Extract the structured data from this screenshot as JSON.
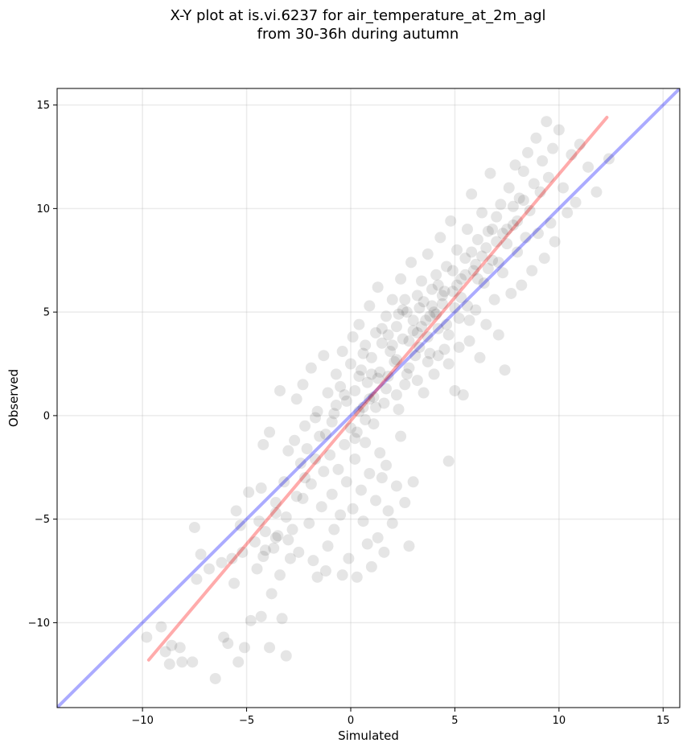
{
  "chart_data": {
    "type": "scatter",
    "title": "X-Y plot at is.vi.6237 for air_temperature_at_2m_agl",
    "subtitle": "from 30-36h during autumn",
    "xlabel": "Simulated",
    "ylabel": "Observed",
    "xlim": [
      -14.1,
      15.8
    ],
    "ylim": [
      -14.1,
      15.8
    ],
    "x_ticks": [
      -10,
      -5,
      0,
      5,
      10,
      15
    ],
    "y_ticks": [
      -10,
      -5,
      0,
      5,
      10,
      15
    ],
    "x_tick_labels": [
      "−10",
      "−5",
      "0",
      "5",
      "10",
      "15"
    ],
    "y_tick_labels": [
      "−10",
      "−5",
      "0",
      "5",
      "10",
      "15"
    ],
    "grid": true,
    "point_color": "#000000",
    "point_opacity": 0.1,
    "reference_line": {
      "color": "#0000ff",
      "opacity": 0.33,
      "x": [
        -14.1,
        15.8
      ],
      "y": [
        -14.1,
        15.8
      ]
    },
    "regression_line": {
      "color": "#ff0000",
      "opacity": 0.33,
      "x": [
        -9.7,
        12.3
      ],
      "y": [
        -11.8,
        14.4
      ]
    },
    "series": [
      {
        "points": [
          [
            -9.8,
            -10.7
          ],
          [
            -9.1,
            -10.2
          ],
          [
            -8.9,
            -11.4
          ],
          [
            -8.6,
            -11.1
          ],
          [
            -8.7,
            -12.0
          ],
          [
            -8.2,
            -11.2
          ],
          [
            -8.1,
            -11.9
          ],
          [
            -7.6,
            -11.9
          ],
          [
            -7.4,
            -7.9
          ],
          [
            -7.2,
            -6.7
          ],
          [
            -7.5,
            -5.4
          ],
          [
            -6.8,
            -7.4
          ],
          [
            -6.5,
            -12.7
          ],
          [
            -6.2,
            -7.1
          ],
          [
            -6.1,
            -10.7
          ],
          [
            -5.9,
            -11.0
          ],
          [
            -5.7,
            -6.9
          ],
          [
            -5.6,
            -8.1
          ],
          [
            -5.5,
            -4.6
          ],
          [
            -5.3,
            -5.3
          ],
          [
            -5.4,
            -11.9
          ],
          [
            -5.1,
            -11.2
          ],
          [
            -5.2,
            -6.6
          ],
          [
            -4.9,
            -3.7
          ],
          [
            -4.8,
            -9.9
          ],
          [
            -4.6,
            -6.1
          ],
          [
            -4.5,
            -7.4
          ],
          [
            -4.3,
            -9.7
          ],
          [
            -4.4,
            -5.1
          ],
          [
            -4.1,
            -5.6
          ],
          [
            -4.2,
            -6.8
          ],
          [
            -3.9,
            -11.2
          ],
          [
            -3.8,
            -8.6
          ],
          [
            -3.7,
            -6.4
          ],
          [
            -3.6,
            -4.7
          ],
          [
            -3.5,
            -5.8
          ],
          [
            -3.4,
            -7.7
          ],
          [
            -3.3,
            -9.8
          ],
          [
            -3.1,
            -11.6
          ],
          [
            -3.2,
            -3.2
          ],
          [
            -3.0,
            -6.0
          ],
          [
            -2.9,
            -6.9
          ],
          [
            -2.8,
            -5.5
          ],
          [
            -4.2,
            -1.4
          ],
          [
            -4.3,
            -3.5
          ],
          [
            -3.9,
            -0.8
          ],
          [
            -3.6,
            -4.2
          ],
          [
            -2.7,
            -1.2
          ],
          [
            -2.5,
            -6.6
          ],
          [
            -2.4,
            -2.3
          ],
          [
            -2.3,
            -4.0
          ],
          [
            -2.2,
            -0.5
          ],
          [
            -2.1,
            -1.6
          ],
          [
            -2.0,
            -5.2
          ],
          [
            -1.9,
            -3.3
          ],
          [
            -1.8,
            -7.0
          ],
          [
            -1.7,
            -0.1
          ],
          [
            -1.6,
            -7.8
          ],
          [
            -1.5,
            -1.0
          ],
          [
            -1.4,
            -4.4
          ],
          [
            -1.3,
            -2.7
          ],
          [
            -1.2,
            -7.5
          ],
          [
            -1.1,
            -6.3
          ],
          [
            -1.0,
            -1.9
          ],
          [
            -0.9,
            -3.8
          ],
          [
            -0.8,
            -5.5
          ],
          [
            -0.7,
            0.5
          ],
          [
            -0.6,
            -2.6
          ],
          [
            -0.5,
            -4.8
          ],
          [
            -0.4,
            -7.7
          ],
          [
            -0.3,
            -1.4
          ],
          [
            -0.2,
            -3.2
          ],
          [
            -0.1,
            -6.9
          ],
          [
            0.0,
            -0.6
          ],
          [
            0.1,
            -4.5
          ],
          [
            0.2,
            -2.1
          ],
          [
            0.3,
            -7.8
          ],
          [
            0.4,
            0.2
          ],
          [
            0.5,
            -3.6
          ],
          [
            0.6,
            -5.1
          ],
          [
            0.7,
            -1.3
          ],
          [
            0.8,
            -6.2
          ],
          [
            0.9,
            -2.8
          ],
          [
            1.0,
            -7.3
          ],
          [
            1.1,
            -0.4
          ],
          [
            1.2,
            -4.1
          ],
          [
            1.3,
            -5.9
          ],
          [
            1.4,
            -1.8
          ],
          [
            1.5,
            -3.0
          ],
          [
            1.6,
            -6.6
          ],
          [
            1.7,
            -2.4
          ],
          [
            1.8,
            -4.6
          ],
          [
            2.0,
            -5.2
          ],
          [
            2.2,
            -3.4
          ],
          [
            2.4,
            -1.0
          ],
          [
            2.6,
            -4.2
          ],
          [
            2.8,
            -6.3
          ],
          [
            3.0,
            -3.2
          ],
          [
            4.7,
            -2.2
          ],
          [
            -3.4,
            1.2
          ],
          [
            -3.0,
            -1.7
          ],
          [
            -2.6,
            0.8
          ],
          [
            -2.3,
            1.5
          ],
          [
            -1.9,
            2.3
          ],
          [
            -1.6,
            0.2
          ],
          [
            -1.3,
            2.9
          ],
          [
            -1.1,
            1.1
          ],
          [
            -0.9,
            -0.3
          ],
          [
            -0.7,
            2.0
          ],
          [
            -0.5,
            1.4
          ],
          [
            -0.4,
            3.1
          ],
          [
            -0.2,
            0.7
          ],
          [
            0.0,
            2.5
          ],
          [
            0.1,
            3.8
          ],
          [
            0.2,
            1.2
          ],
          [
            0.3,
            -0.8
          ],
          [
            0.4,
            4.4
          ],
          [
            0.5,
            2.2
          ],
          [
            0.6,
            0.4
          ],
          [
            0.7,
            3.4
          ],
          [
            0.8,
            1.6
          ],
          [
            0.9,
            5.3
          ],
          [
            1.0,
            2.8
          ],
          [
            1.1,
            0.9
          ],
          [
            1.2,
            4.0
          ],
          [
            1.3,
            6.2
          ],
          [
            1.4,
            2.1
          ],
          [
            1.5,
            3.5
          ],
          [
            1.6,
            0.6
          ],
          [
            1.7,
            4.8
          ],
          [
            1.8,
            1.9
          ],
          [
            1.9,
            3.1
          ],
          [
            2.0,
            5.6
          ],
          [
            2.1,
            2.6
          ],
          [
            2.2,
            4.3
          ],
          [
            2.3,
            0.3
          ],
          [
            2.4,
            6.6
          ],
          [
            2.5,
            3.7
          ],
          [
            2.6,
            1.5
          ],
          [
            2.7,
            5.0
          ],
          [
            2.8,
            2.3
          ],
          [
            2.9,
            7.4
          ],
          [
            3.0,
            4.1
          ],
          [
            3.1,
            2.9
          ],
          [
            3.2,
            5.8
          ],
          [
            3.3,
            3.3
          ],
          [
            3.4,
            6.5
          ],
          [
            3.5,
            1.1
          ],
          [
            3.6,
            4.6
          ],
          [
            3.7,
            7.8
          ],
          [
            3.8,
            3.0
          ],
          [
            3.9,
            5.3
          ],
          [
            4.0,
            2.0
          ],
          [
            4.1,
            6.8
          ],
          [
            4.2,
            4.2
          ],
          [
            4.3,
            8.6
          ],
          [
            4.4,
            5.4
          ],
          [
            4.5,
            3.2
          ],
          [
            4.6,
            7.2
          ],
          [
            4.7,
            2.5
          ],
          [
            4.8,
            9.4
          ],
          [
            4.9,
            6.0
          ],
          [
            5.0,
            1.2
          ],
          [
            5.1,
            8.0
          ],
          [
            5.2,
            4.7
          ],
          [
            5.3,
            6.6
          ],
          [
            5.4,
            1.0
          ],
          [
            5.5,
            7.6
          ],
          [
            5.6,
            9.0
          ],
          [
            5.7,
            3.6
          ],
          [
            5.8,
            10.7
          ],
          [
            5.9,
            7.0
          ],
          [
            6.0,
            5.1
          ],
          [
            6.1,
            8.5
          ],
          [
            6.2,
            2.8
          ],
          [
            6.3,
            9.8
          ],
          [
            6.4,
            6.4
          ],
          [
            6.5,
            4.4
          ],
          [
            6.6,
            8.9
          ],
          [
            6.7,
            11.7
          ],
          [
            6.8,
            7.5
          ],
          [
            6.9,
            5.6
          ],
          [
            7.0,
            9.6
          ],
          [
            7.1,
            3.9
          ],
          [
            7.2,
            10.2
          ],
          [
            7.3,
            6.9
          ],
          [
            7.4,
            2.2
          ],
          [
            7.5,
            8.3
          ],
          [
            7.6,
            11.0
          ],
          [
            7.7,
            5.9
          ],
          [
            7.8,
            9.2
          ],
          [
            7.9,
            12.1
          ],
          [
            8.0,
            7.9
          ],
          [
            8.1,
            10.5
          ],
          [
            8.2,
            6.3
          ],
          [
            8.3,
            11.8
          ],
          [
            8.4,
            8.6
          ],
          [
            8.5,
            12.7
          ],
          [
            8.6,
            9.9
          ],
          [
            8.7,
            7.0
          ],
          [
            8.8,
            11.2
          ],
          [
            8.9,
            13.4
          ],
          [
            9.0,
            8.8
          ],
          [
            9.1,
            10.8
          ],
          [
            9.2,
            12.3
          ],
          [
            9.3,
            7.6
          ],
          [
            9.4,
            14.2
          ],
          [
            9.5,
            11.5
          ],
          [
            9.6,
            9.3
          ],
          [
            9.7,
            12.9
          ],
          [
            9.8,
            8.4
          ],
          [
            10.0,
            13.8
          ],
          [
            10.2,
            11.0
          ],
          [
            10.4,
            9.8
          ],
          [
            10.6,
            12.6
          ],
          [
            10.8,
            10.3
          ],
          [
            11.0,
            13.1
          ],
          [
            11.4,
            12.0
          ],
          [
            11.8,
            10.8
          ],
          [
            12.4,
            12.4
          ],
          [
            0.6,
            3.0
          ],
          [
            1.0,
            2.0
          ],
          [
            1.5,
            4.2
          ],
          [
            2.0,
            3.4
          ],
          [
            2.5,
            5.1
          ],
          [
            3.0,
            4.6
          ],
          [
            3.5,
            5.5
          ],
          [
            4.0,
            5.0
          ],
          [
            4.5,
            6.0
          ],
          [
            5.0,
            5.2
          ],
          [
            5.5,
            6.8
          ],
          [
            6.0,
            7.3
          ],
          [
            6.5,
            8.1
          ],
          [
            7.0,
            8.4
          ],
          [
            7.5,
            9.0
          ],
          [
            8.0,
            9.4
          ],
          [
            3.2,
            4.0
          ],
          [
            3.8,
            4.8
          ],
          [
            4.2,
            6.3
          ],
          [
            2.2,
            2.7
          ],
          [
            1.3,
            1.8
          ],
          [
            0.9,
            0.8
          ],
          [
            0.4,
            1.9
          ],
          [
            -0.3,
            1.0
          ],
          [
            -0.8,
            0.1
          ],
          [
            -1.2,
            -0.9
          ],
          [
            -1.7,
            -2.1
          ],
          [
            -2.2,
            -3.0
          ],
          [
            -2.6,
            -3.9
          ],
          [
            -3.1,
            -4.9
          ],
          [
            -3.6,
            -5.9
          ],
          [
            -4.1,
            -6.5
          ],
          [
            2.6,
            5.6
          ],
          [
            3.4,
            4.3
          ],
          [
            3.9,
            6.1
          ],
          [
            4.4,
            5.8
          ],
          [
            4.9,
            7.0
          ],
          [
            5.3,
            5.7
          ],
          [
            5.8,
            7.9
          ],
          [
            6.3,
            7.7
          ],
          [
            6.8,
            9.0
          ],
          [
            7.3,
            8.8
          ],
          [
            7.8,
            10.1
          ],
          [
            8.3,
            10.4
          ],
          [
            1.8,
            3.9
          ],
          [
            2.3,
            4.9
          ],
          [
            2.8,
            3.6
          ],
          [
            3.3,
            5.2
          ],
          [
            3.7,
            3.8
          ],
          [
            4.1,
            4.9
          ],
          [
            4.6,
            4.4
          ],
          [
            5.1,
            6.3
          ],
          [
            5.6,
            5.3
          ],
          [
            6.1,
            6.6
          ],
          [
            6.6,
            7.1
          ],
          [
            7.1,
            7.4
          ],
          [
            0.2,
            -1.1
          ],
          [
            0.7,
            -0.2
          ],
          [
            1.2,
            0.4
          ],
          [
            1.7,
            1.3
          ],
          [
            2.2,
            1.0
          ],
          [
            2.7,
            2.0
          ],
          [
            3.2,
            1.7
          ],
          [
            3.7,
            2.6
          ],
          [
            4.2,
            2.9
          ],
          [
            4.7,
            3.9
          ],
          [
            5.2,
            3.3
          ],
          [
            5.7,
            4.6
          ]
        ]
      }
    ]
  }
}
